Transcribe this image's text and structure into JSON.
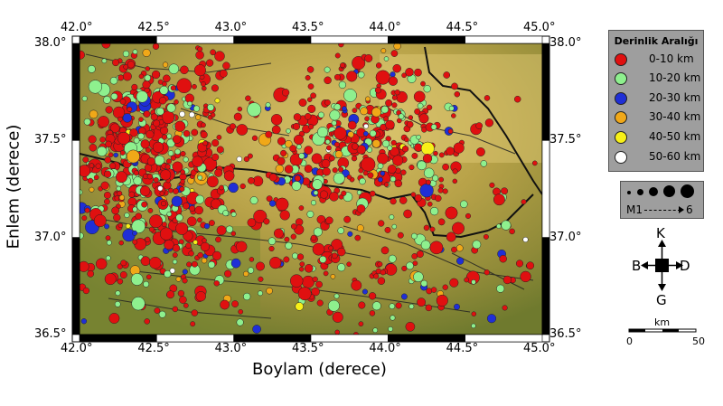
{
  "map": {
    "x_axis_title": "Boylam (derece)",
    "y_axis_title": "Enlem (derece)",
    "x_ticks": [
      "42.0°",
      "42.5°",
      "43.0°",
      "43.5°",
      "44.0°",
      "44.5°",
      "45.0°"
    ],
    "y_ticks": [
      "38.0°",
      "37.5°",
      "37.0°",
      "36.5°"
    ],
    "extent": {
      "lon": [
        42.0,
        45.0
      ],
      "lat": [
        36.5,
        38.0
      ]
    }
  },
  "legend": {
    "title": "Derinlik Aralığı",
    "items": [
      {
        "label": "0-10 km",
        "color": "#e01010"
      },
      {
        "label": "10-20 km",
        "color": "#8ef08e"
      },
      {
        "label": "20-30 km",
        "color": "#1f2fd6"
      },
      {
        "label": "30-40 km",
        "color": "#f0a818"
      },
      {
        "label": "40-50 km",
        "color": "#f8f018"
      },
      {
        "label": "50-60 km",
        "color": "#ffffff"
      }
    ]
  },
  "magnitude_legend": {
    "min_label": "M1",
    "max_label": "6"
  },
  "compass": {
    "north": "K",
    "south": "G",
    "west": "B",
    "east": "D"
  },
  "scale_bar": {
    "unit": "km",
    "zero": "0",
    "max": "50"
  }
}
